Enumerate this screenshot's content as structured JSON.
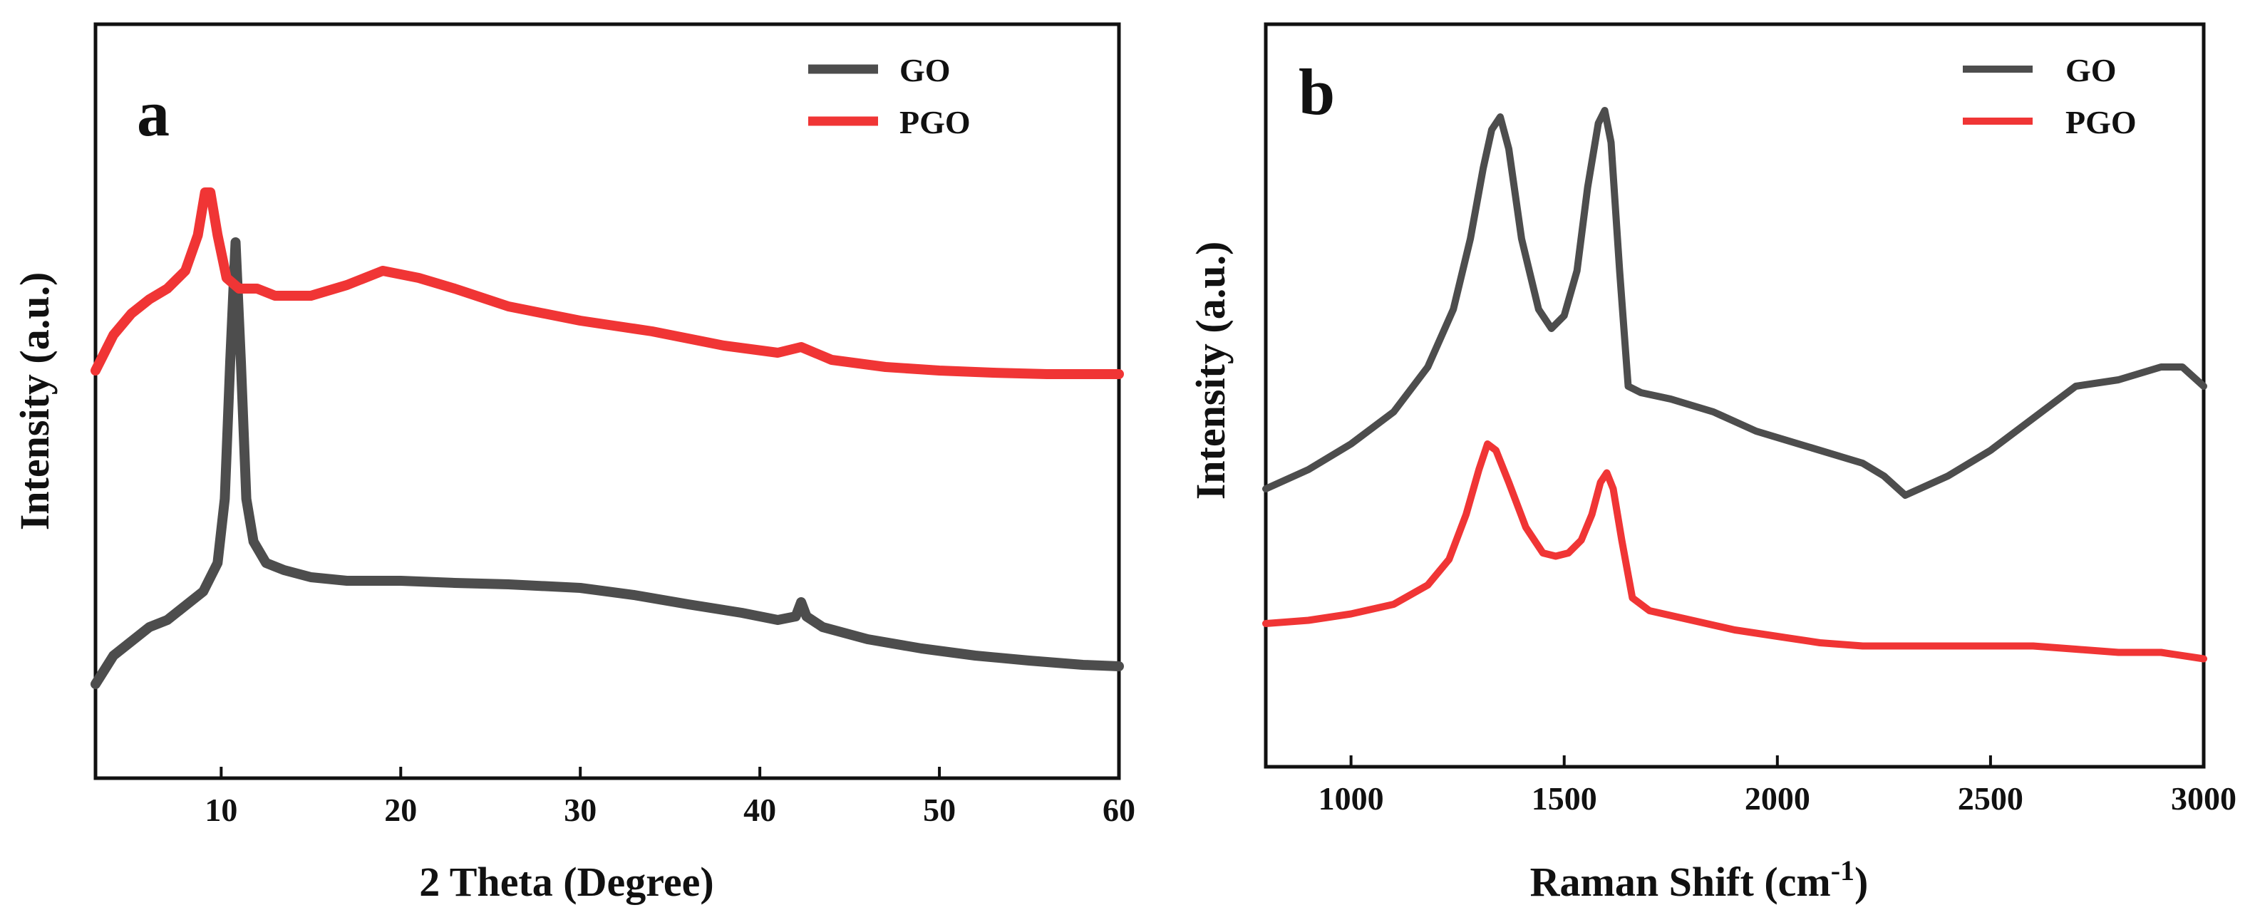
{
  "chart_data": [
    {
      "panel": "a",
      "type": "line",
      "xlabel": "2 Theta (Degree)",
      "ylabel": "Intensity (a.u.)",
      "xlim": [
        3,
        60
      ],
      "ylim": [
        0,
        100
      ],
      "xticks": [
        10,
        20,
        30,
        40,
        50,
        60
      ],
      "xtick_labels": [
        "10",
        "20",
        "30",
        "40",
        "50",
        "60"
      ],
      "yticks_shown": false,
      "legend_position": "top-right",
      "series": [
        {
          "name": "GO",
          "color": "#4d4d4d",
          "x": [
            3,
            4,
            5,
            6,
            7,
            8,
            9,
            9.8,
            10.2,
            10.5,
            10.8,
            11.1,
            11.4,
            11.8,
            12.5,
            13.5,
            15,
            17,
            20,
            23,
            26,
            30,
            33,
            36,
            39,
            41,
            42,
            42.3,
            42.6,
            43.5,
            46,
            49,
            52,
            55,
            58,
            60
          ],
          "y": [
            10,
            14,
            16,
            18,
            19,
            21,
            23,
            27,
            36,
            55,
            72,
            55,
            36,
            30,
            27,
            26,
            25,
            24.5,
            24.5,
            24.2,
            24,
            23.5,
            22.5,
            21.2,
            20,
            19,
            19.5,
            21.5,
            19.5,
            18,
            16.3,
            15,
            14,
            13.3,
            12.7,
            12.5
          ]
        },
        {
          "name": "PGO",
          "color": "#f03535",
          "x": [
            3,
            4,
            5,
            6,
            7,
            8,
            8.7,
            9.1,
            9.4,
            9.8,
            10.3,
            11,
            12,
            13,
            15,
            17,
            19,
            21,
            23,
            26,
            30,
            34,
            38,
            41,
            42.3,
            44,
            47,
            50,
            53,
            56,
            58,
            60
          ],
          "y": [
            54,
            59,
            62,
            64,
            65.5,
            68,
            73,
            79,
            79,
            73,
            67,
            65.5,
            65.5,
            64.5,
            64.5,
            66,
            68,
            67,
            65.5,
            63,
            61,
            59.5,
            57.5,
            56.5,
            57.3,
            55.5,
            54.5,
            54,
            53.7,
            53.5,
            53.5,
            53.5
          ]
        }
      ]
    },
    {
      "panel": "b",
      "type": "line",
      "xlabel": "Raman Shift (cm",
      "xlabel_superscript": "-1",
      "xlabel_suffix": ")",
      "ylabel": "Intensity (a.u.)",
      "xlim": [
        800,
        3000
      ],
      "ylim": [
        0,
        100
      ],
      "xticks": [
        1000,
        1500,
        2000,
        2500,
        3000
      ],
      "xtick_labels": [
        "1000",
        "1500",
        "2000",
        "2500",
        "3000"
      ],
      "yticks_shown": false,
      "legend_position": "top-right",
      "series": [
        {
          "name": "GO",
          "color": "#4d4d4d",
          "x": [
            800,
            900,
            1000,
            1100,
            1180,
            1240,
            1280,
            1310,
            1330,
            1350,
            1370,
            1400,
            1440,
            1470,
            1500,
            1530,
            1555,
            1580,
            1595,
            1610,
            1630,
            1650,
            1680,
            1750,
            1850,
            1950,
            2050,
            2150,
            2200,
            2250,
            2300,
            2400,
            2500,
            2600,
            2700,
            2800,
            2900,
            2950,
            3000
          ],
          "y": [
            36,
            39,
            43,
            48,
            55,
            64,
            75,
            86,
            92,
            94,
            89,
            75,
            64,
            61,
            63,
            70,
            83,
            93,
            95,
            90,
            70,
            52,
            51,
            50,
            48,
            45,
            43,
            41,
            40,
            38,
            35,
            38,
            42,
            47,
            52,
            53,
            55,
            55,
            52
          ]
        },
        {
          "name": "PGO",
          "color": "#f03535",
          "x": [
            800,
            900,
            1000,
            1100,
            1180,
            1230,
            1270,
            1300,
            1320,
            1340,
            1370,
            1410,
            1450,
            1480,
            1510,
            1540,
            1565,
            1585,
            1600,
            1615,
            1635,
            1660,
            1700,
            1800,
            1900,
            2000,
            2100,
            2200,
            2300,
            2400,
            2500,
            2600,
            2700,
            2800,
            2900,
            3000
          ],
          "y": [
            15,
            15.5,
            16.5,
            18,
            21,
            25,
            32,
            39,
            43,
            42,
            37,
            30,
            26,
            25.5,
            26,
            28,
            32,
            37,
            38.5,
            36,
            28,
            19,
            17,
            15.5,
            14,
            13,
            12,
            11.5,
            11.5,
            11.5,
            11.5,
            11.5,
            11,
            10.5,
            10.5,
            9.5
          ]
        }
      ]
    }
  ]
}
